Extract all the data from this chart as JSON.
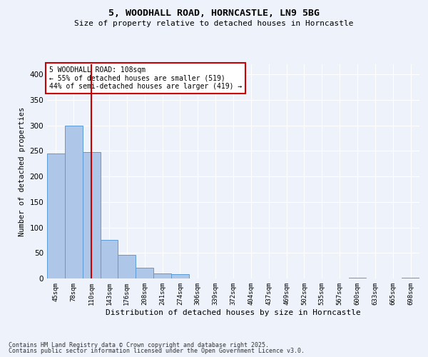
{
  "title1": "5, WOODHALL ROAD, HORNCASTLE, LN9 5BG",
  "title2": "Size of property relative to detached houses in Horncastle",
  "xlabel": "Distribution of detached houses by size in Horncastle",
  "ylabel": "Number of detached properties",
  "bar_labels": [
    "45sqm",
    "78sqm",
    "110sqm",
    "143sqm",
    "176sqm",
    "208sqm",
    "241sqm",
    "274sqm",
    "306sqm",
    "339sqm",
    "372sqm",
    "404sqm",
    "437sqm",
    "469sqm",
    "502sqm",
    "535sqm",
    "567sqm",
    "600sqm",
    "633sqm",
    "665sqm",
    "698sqm"
  ],
  "bar_values": [
    245,
    300,
    248,
    75,
    46,
    21,
    10,
    8,
    0,
    0,
    0,
    0,
    0,
    0,
    0,
    0,
    0,
    2,
    0,
    0,
    2
  ],
  "bar_color": "#aec6e8",
  "bar_edge_color": "#5b9bd5",
  "property_index": 2,
  "property_label": "5 WOODHALL ROAD: 108sqm",
  "annotation_line1": "← 55% of detached houses are smaller (519)",
  "annotation_line2": "44% of semi-detached houses are larger (419) →",
  "vline_color": "#cc0000",
  "annotation_box_color": "#cc0000",
  "background_color": "#eef2fa",
  "grid_color": "#ffffff",
  "footnote1": "Contains HM Land Registry data © Crown copyright and database right 2025.",
  "footnote2": "Contains public sector information licensed under the Open Government Licence v3.0.",
  "ylim": [
    0,
    420
  ],
  "yticks": [
    0,
    50,
    100,
    150,
    200,
    250,
    300,
    350,
    400
  ]
}
